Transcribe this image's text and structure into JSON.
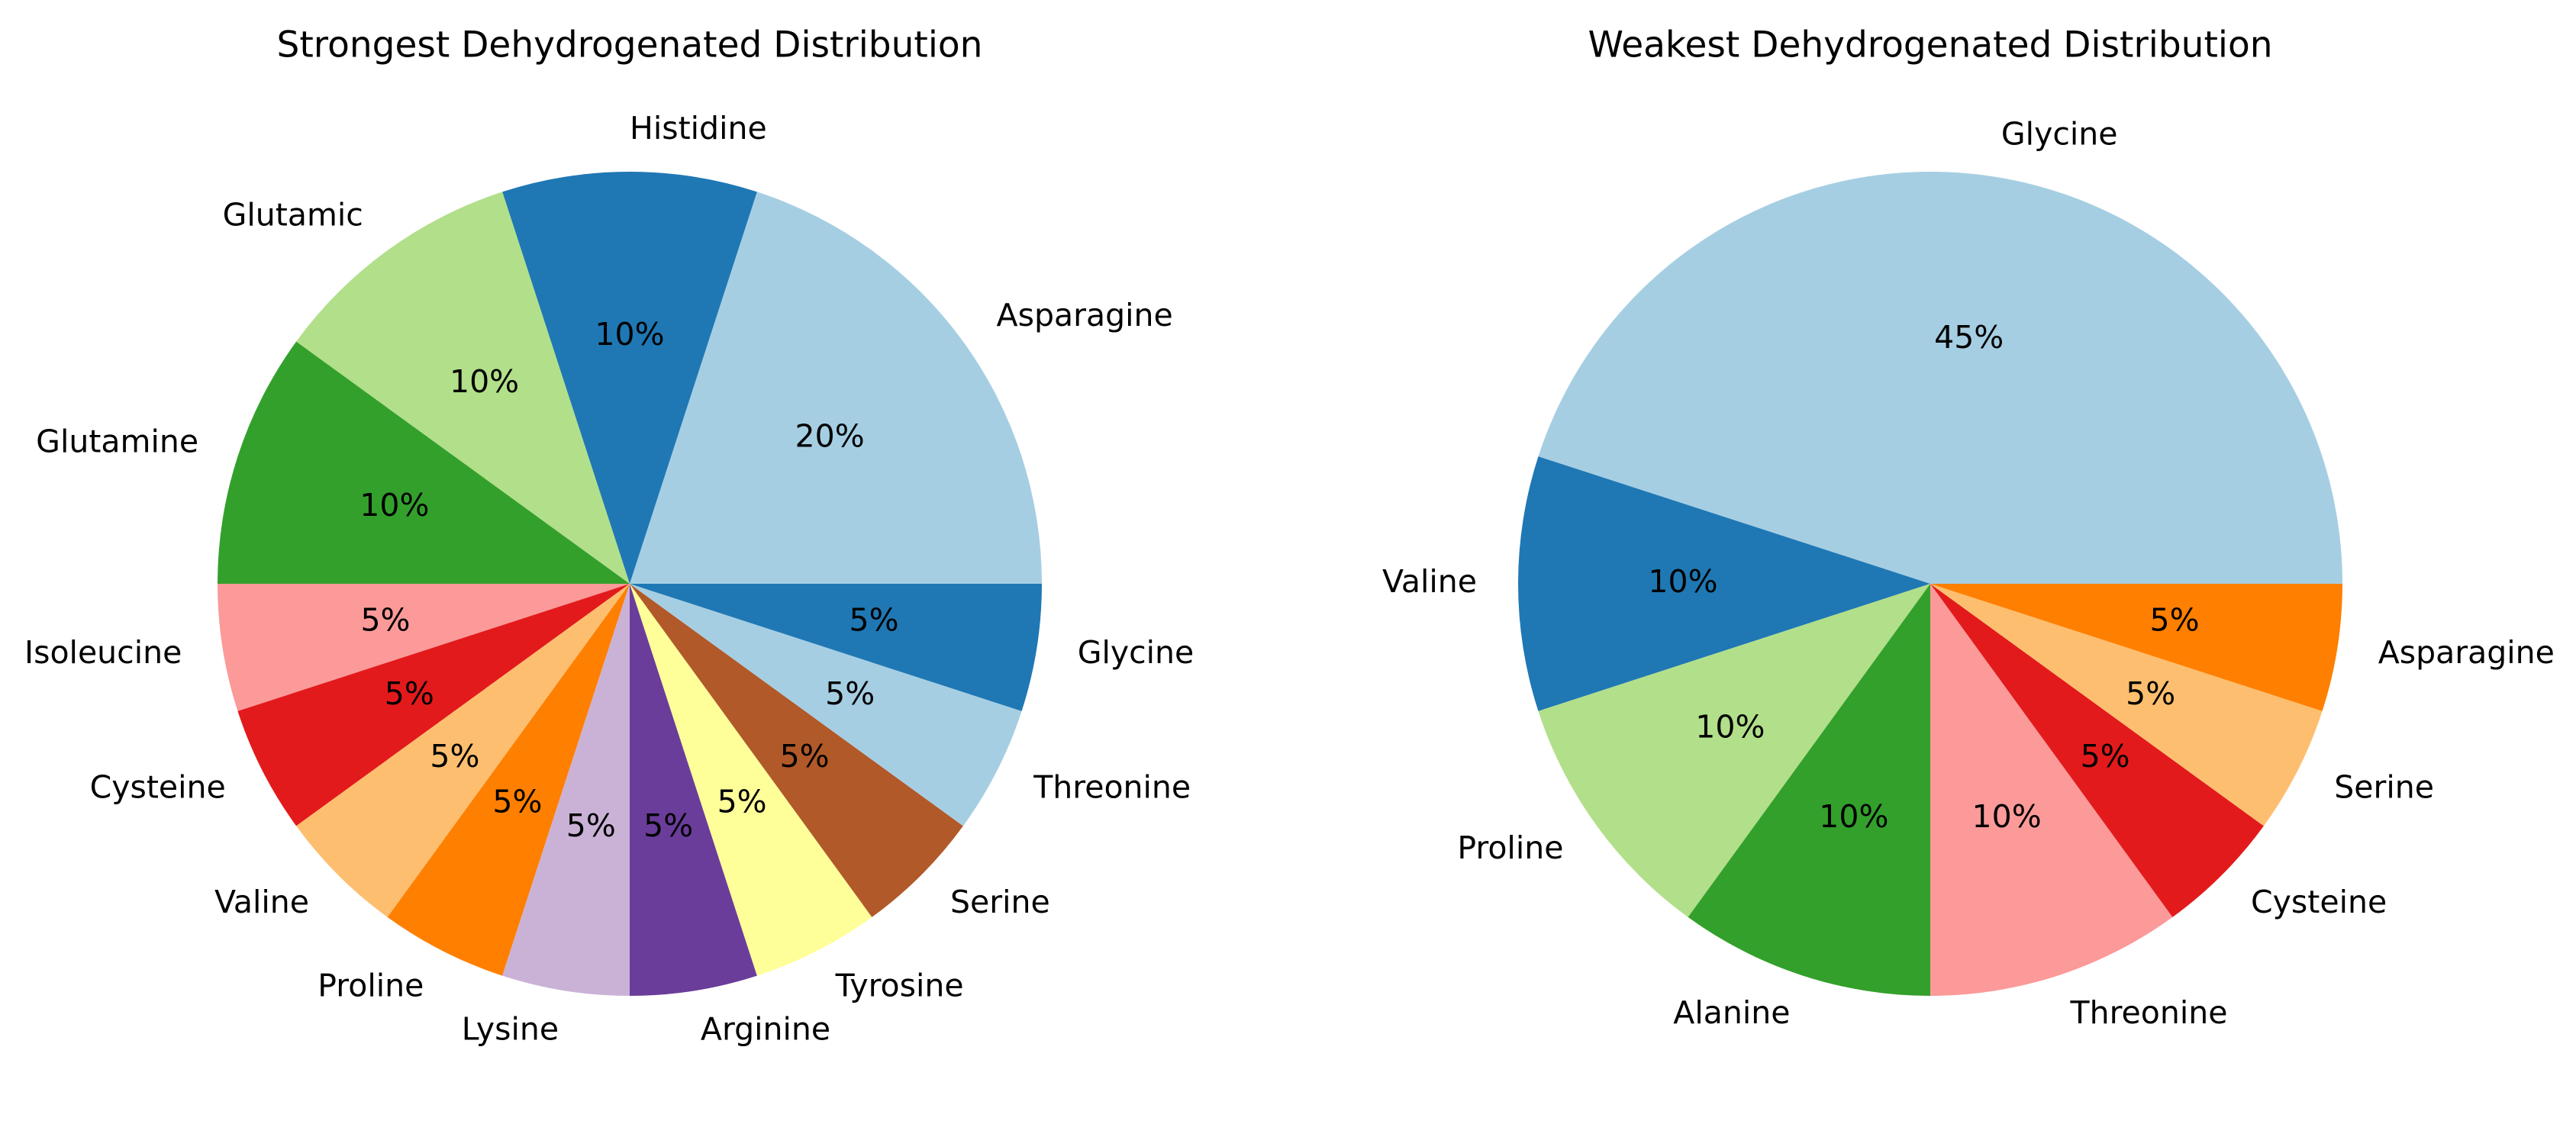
{
  "chart_data": [
    {
      "type": "pie",
      "title": "Strongest Dehydrogenated Distribution",
      "labels": [
        "Asparagine",
        "Histidine",
        "Glutamic",
        "Glutamine",
        "Isoleucine",
        "Cysteine",
        "Valine",
        "Proline",
        "Lysine",
        "Arginine",
        "Tyrosine",
        "Serine",
        "Threonine",
        "Glycine"
      ],
      "values": [
        20,
        10,
        10,
        10,
        5,
        5,
        5,
        5,
        5,
        5,
        5,
        5,
        5,
        5
      ],
      "percent_labels": [
        "20%",
        "10%",
        "10%",
        "10%",
        "5%",
        "5%",
        "5%",
        "5%",
        "5%",
        "5%",
        "5%",
        "5%",
        "5%",
        "5%"
      ],
      "colors": [
        "#a6cee3",
        "#1f78b4",
        "#b2df8a",
        "#33a02c",
        "#fb9a99",
        "#e31a1c",
        "#fdbf6f",
        "#ff7f00",
        "#cab2d6",
        "#6a3d9a",
        "#ffff99",
        "#b15928",
        "#a6cee3",
        "#1f78b4"
      ],
      "start_angle_deg": 0,
      "direction": "counterclockwise"
    },
    {
      "type": "pie",
      "title": "Weakest Dehydrogenated Distribution",
      "labels": [
        "Glycine",
        "Valine",
        "Proline",
        "Alanine",
        "Threonine",
        "Cysteine",
        "Serine",
        "Asparagine"
      ],
      "values": [
        45,
        10,
        10,
        10,
        10,
        5,
        5,
        5
      ],
      "percent_labels": [
        "45%",
        "10%",
        "10%",
        "10%",
        "10%",
        "5%",
        "5%",
        "5%"
      ],
      "colors": [
        "#a6cee3",
        "#1f78b4",
        "#b2df8a",
        "#33a02c",
        "#fb9a99",
        "#e31a1c",
        "#fdbf6f",
        "#ff7f00"
      ],
      "start_angle_deg": 0,
      "direction": "counterclockwise"
    }
  ]
}
